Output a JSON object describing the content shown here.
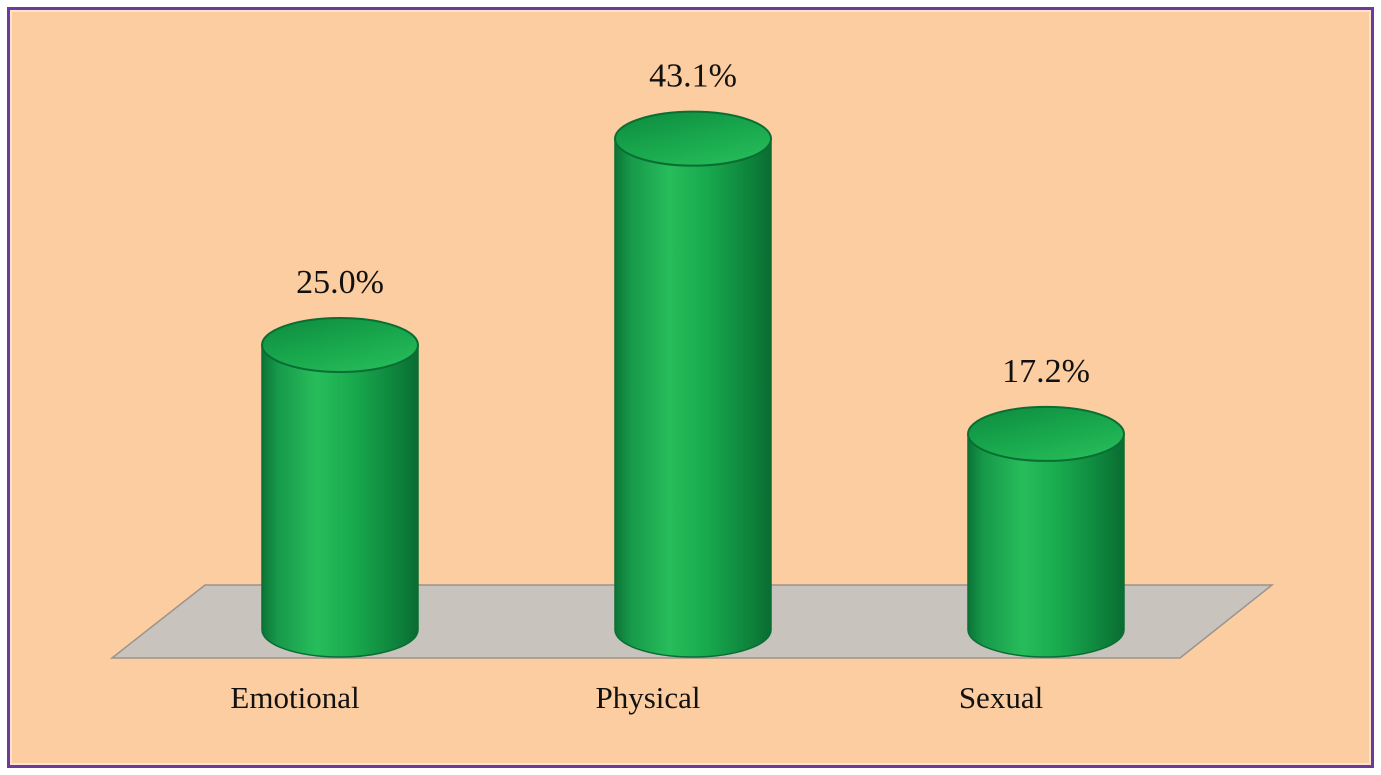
{
  "chart_data": {
    "type": "bar",
    "subtype": "3d-cylinder",
    "title": "",
    "xlabel": "",
    "ylabel": "",
    "categories": [
      "Emotional",
      "Physical",
      "Sexual"
    ],
    "values": [
      25.0,
      43.1,
      17.2
    ],
    "value_labels": [
      "25.0%",
      "43.1%",
      "17.2%"
    ],
    "ylim": [
      0,
      50
    ],
    "grid": "off",
    "legend": "none",
    "colors": {
      "background": "#fbcda0",
      "frame_border": "#6c3a9d",
      "bar_mid": "#18a84d",
      "bar_light": "#27bd5b",
      "bar_dark": "#0b7436",
      "bar_edge": "#0a6e33",
      "floor_fill": "#c9c3be",
      "floor_edge": "#9b938c",
      "label_text": "#111111"
    }
  }
}
